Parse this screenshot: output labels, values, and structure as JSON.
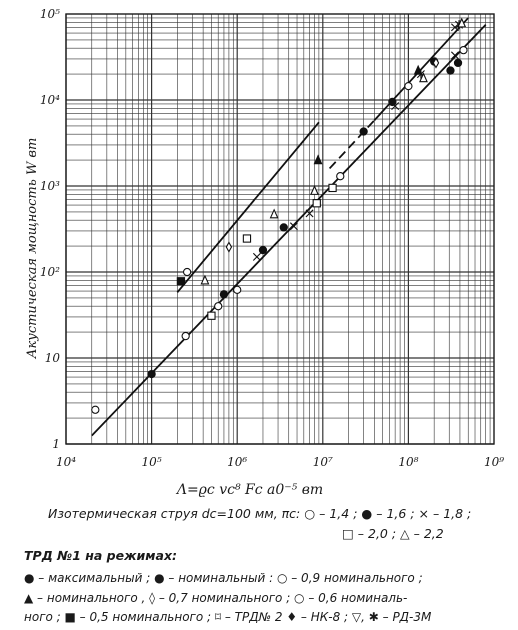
{
  "chart_data": {
    "type": "scatter",
    "x_axis": {
      "scale": "log",
      "min": 10000,
      "max": 1000000000,
      "tick_labels": [
        "10⁴",
        "10⁵",
        "10⁶",
        "10⁷",
        "10⁸",
        "10⁹"
      ],
      "label": "Λ=ϱc vc⁸ Fc a0⁻⁵    вт"
    },
    "y_axis": {
      "scale": "log",
      "min": 1,
      "max": 100000,
      "tick_labels": [
        "1",
        "10",
        "10²",
        "10³",
        "10⁴",
        "10⁵"
      ],
      "label": "Акустическая мощность  W  вт"
    },
    "grid": true,
    "lines": [
      {
        "name": "upper",
        "x": [
          200000,
          9000000
        ],
        "y": [
          58,
          5500
        ],
        "style": "solid"
      },
      {
        "name": "upper-dashed",
        "x": [
          12000000,
          40000000
        ],
        "y": [
          1600,
          5800
        ],
        "style": "dashed"
      },
      {
        "name": "upper-2",
        "x": [
          40000000,
          500000000
        ],
        "y": [
          5800,
          90000
        ],
        "style": "solid"
      },
      {
        "name": "lower",
        "x": [
          20000,
          800000000
        ],
        "y": [
          1.25,
          75000
        ],
        "style": "solid"
      }
    ],
    "points": [
      {
        "m": "o",
        "x": 22000,
        "y": 2.5
      },
      {
        "m": "fc",
        "x": 100000,
        "y": 6.5
      },
      {
        "m": "o",
        "x": 250000,
        "y": 18
      },
      {
        "m": "sq",
        "x": 500000,
        "y": 31
      },
      {
        "m": "o",
        "x": 600000,
        "y": 40
      },
      {
        "m": "fc",
        "x": 700000,
        "y": 55
      },
      {
        "m": "o",
        "x": 1000000,
        "y": 62
      },
      {
        "m": "fs",
        "x": 220000,
        "y": 78
      },
      {
        "m": "o",
        "x": 260000,
        "y": 100
      },
      {
        "m": "tri",
        "x": 420000,
        "y": 80
      },
      {
        "m": "dia",
        "x": 800000,
        "y": 195
      },
      {
        "m": "sq",
        "x": 1300000,
        "y": 245
      },
      {
        "m": "x",
        "x": 1700000,
        "y": 150
      },
      {
        "m": "fc",
        "x": 2000000,
        "y": 180
      },
      {
        "m": "tri",
        "x": 2700000,
        "y": 470
      },
      {
        "m": "fc",
        "x": 3500000,
        "y": 330
      },
      {
        "m": "x",
        "x": 4600000,
        "y": 340
      },
      {
        "m": "x",
        "x": 7000000,
        "y": 480
      },
      {
        "m": "sq",
        "x": 8500000,
        "y": 630
      },
      {
        "m": "tri",
        "x": 8000000,
        "y": 880
      },
      {
        "m": "ftri",
        "x": 8800000,
        "y": 2000
      },
      {
        "m": "sq",
        "x": 13000000,
        "y": 950
      },
      {
        "m": "o",
        "x": 16000000,
        "y": 1300
      },
      {
        "m": "fc",
        "x": 30000000,
        "y": 4300
      },
      {
        "m": "x",
        "x": 70000000,
        "y": 8500
      },
      {
        "m": "fc",
        "x": 65000000,
        "y": 9500
      },
      {
        "m": "o",
        "x": 100000000,
        "y": 14500
      },
      {
        "m": "ftri",
        "x": 130000000,
        "y": 22000
      },
      {
        "m": "ast",
        "x": 140000000,
        "y": 20000
      },
      {
        "m": "tri",
        "x": 150000000,
        "y": 18000
      },
      {
        "m": "fc",
        "x": 200000000,
        "y": 28000
      },
      {
        "m": "dia",
        "x": 210000000,
        "y": 27000
      },
      {
        "m": "fc",
        "x": 310000000,
        "y": 22000
      },
      {
        "m": "fc",
        "x": 380000000,
        "y": 27000
      },
      {
        "m": "x",
        "x": 350000000,
        "y": 33000
      },
      {
        "m": "o",
        "x": 440000000,
        "y": 38000
      },
      {
        "m": "x",
        "x": 350000000,
        "y": 70000
      },
      {
        "m": "ast",
        "x": 390000000,
        "y": 75000
      },
      {
        "m": "tri",
        "x": 420000000,
        "y": 78000
      }
    ]
  },
  "caption": {
    "line1": "Изотермическая струя  dc=100 мм, πс: ○ – 1,4 ; ● – 1,6 ;  × – 1,8 ;",
    "line2": "□ – 2,0 ; △ – 2,2",
    "line3": "ТРД №1 на режимах:",
    "line4": "● – максимальный ;  ● – номинальный :  ○ – 0,9 номинального ;",
    "line5": "▲ – номинального ,  ◊ – 0,7 номинального ;  ○ – 0,6 номиналь-",
    "line6": "ного ;  ■ – 0,5 номинального ;  ⌑ – ТРД№ 2  ♦ – НК-8 ;  ▽, ✱ – РД-3М"
  }
}
